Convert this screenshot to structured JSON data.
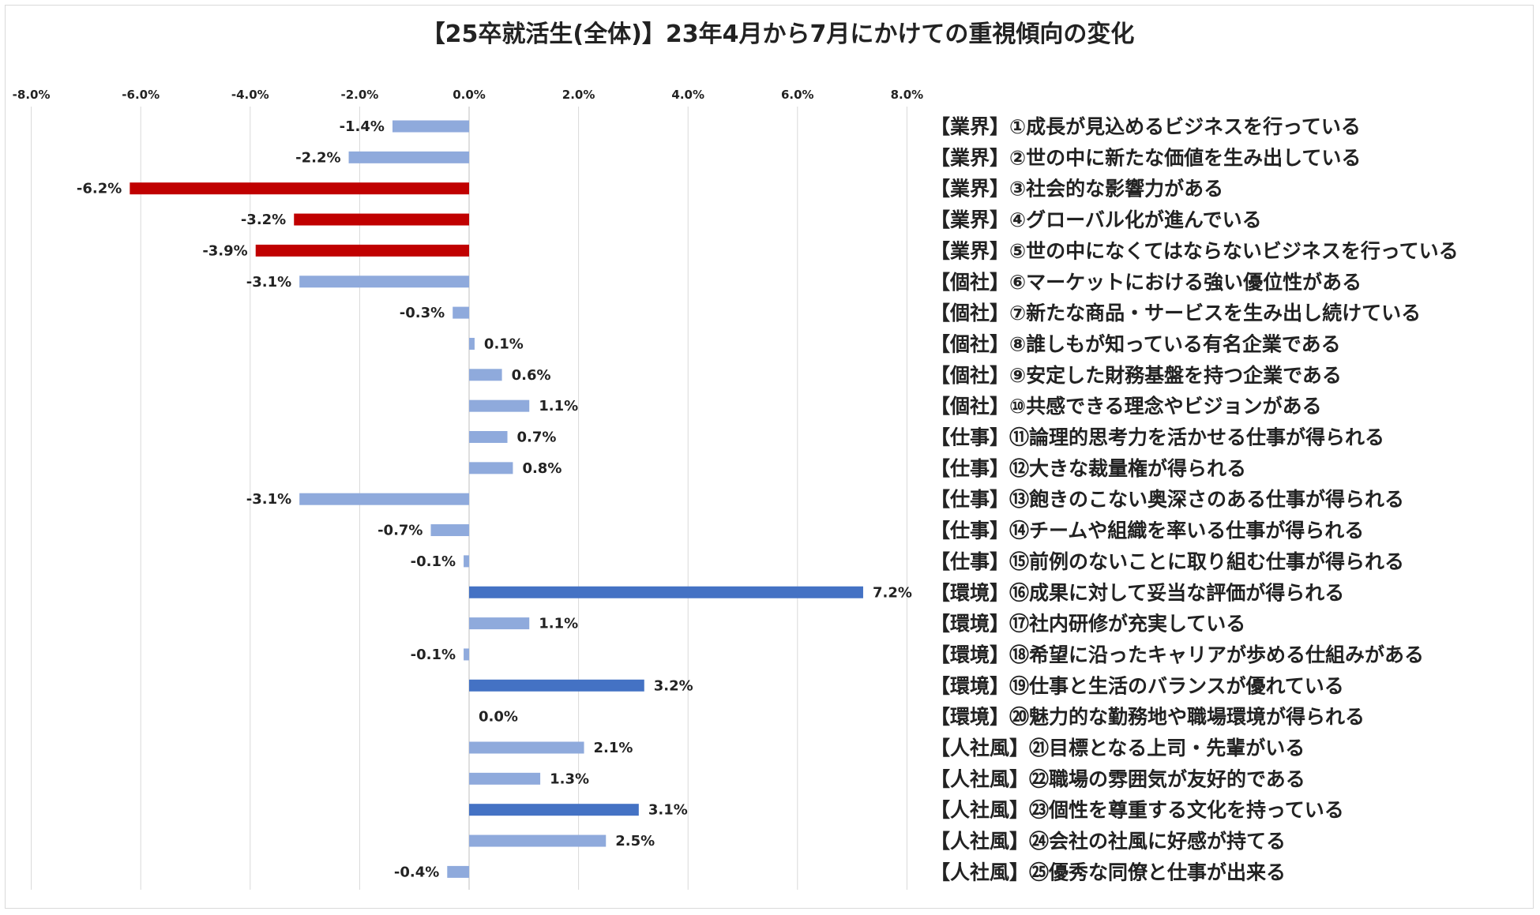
{
  "chart_data": {
    "type": "bar",
    "orientation": "horizontal",
    "title": "【25卒就活生(全体)】23年4月から7月にかけての重視傾向の変化",
    "x_ticks": [
      "-8.0%",
      "-6.0%",
      "-4.0%",
      "-2.0%",
      "0.0%",
      "2.0%",
      "4.0%",
      "6.0%",
      "8.0%"
    ],
    "xlim": [
      -8,
      8
    ],
    "grid": true,
    "colors": {
      "default": "#8faadc",
      "strong_negative": "#c00000",
      "strong_positive": "#4472c4"
    },
    "categories": [
      "【業界】①成長が見込めるビジネスを行っている",
      "【業界】②世の中に新たな価値を生み出している",
      "【業界】③社会的な影響力がある",
      "【業界】④グローバル化が進んでいる",
      "【業界】⑤世の中になくてはならないビジネスを行っている",
      "【個社】⑥マーケットにおける強い優位性がある",
      "【個社】⑦新たな商品・サービスを生み出し続けている",
      "【個社】⑧誰しもが知っている有名企業である",
      "【個社】⑨安定した財務基盤を持つ企業である",
      "【個社】⑩共感できる理念やビジョンがある",
      "【仕事】⑪論理的思考力を活かせる仕事が得られる",
      "【仕事】⑫大きな裁量権が得られる",
      "【仕事】⑬飽きのこない奥深さのある仕事が得られる",
      "【仕事】⑭チームや組織を率いる仕事が得られる",
      "【仕事】⑮前例のないことに取り組む仕事が得られる",
      "【環境】⑯成果に対して妥当な評価が得られる",
      "【環境】⑰社内研修が充実している",
      "【環境】⑱希望に沿ったキャリアが歩める仕組みがある",
      "【環境】⑲仕事と生活のバランスが優れている",
      "【環境】⑳魅力的な勤務地や職場環境が得られる",
      "【人社風】㉑目標となる上司・先輩がいる",
      "【人社風】㉒職場の雰囲気が友好的である",
      "【人社風】㉓個性を尊重する文化を持っている",
      "【人社風】㉔会社の社風に好感が持てる",
      "【人社風】㉕優秀な同僚と仕事が出来る"
    ],
    "values": [
      -1.4,
      -2.2,
      -6.2,
      -3.2,
      -3.9,
      -3.1,
      -0.3,
      0.1,
      0.6,
      1.1,
      0.7,
      0.8,
      -3.1,
      -0.7,
      -0.1,
      7.2,
      1.1,
      -0.1,
      3.2,
      0.0,
      2.1,
      1.3,
      3.1,
      2.5,
      -0.4
    ],
    "value_labels": [
      "-1.4%",
      "-2.2%",
      "-6.2%",
      "-3.2%",
      "-3.9%",
      "-3.1%",
      "-0.3%",
      "0.1%",
      "0.6%",
      "1.1%",
      "0.7%",
      "0.8%",
      "-3.1%",
      "-0.7%",
      "-0.1%",
      "7.2%",
      "1.1%",
      "-0.1%",
      "3.2%",
      "0.0%",
      "2.1%",
      "1.3%",
      "3.1%",
      "2.5%",
      "-0.4%"
    ],
    "highlight": [
      "default",
      "default",
      "strong_negative",
      "strong_negative",
      "strong_negative",
      "default",
      "default",
      "default",
      "default",
      "default",
      "default",
      "default",
      "default",
      "default",
      "default",
      "strong_positive",
      "default",
      "default",
      "strong_positive",
      "default",
      "default",
      "default",
      "strong_positive",
      "default",
      "default"
    ]
  }
}
